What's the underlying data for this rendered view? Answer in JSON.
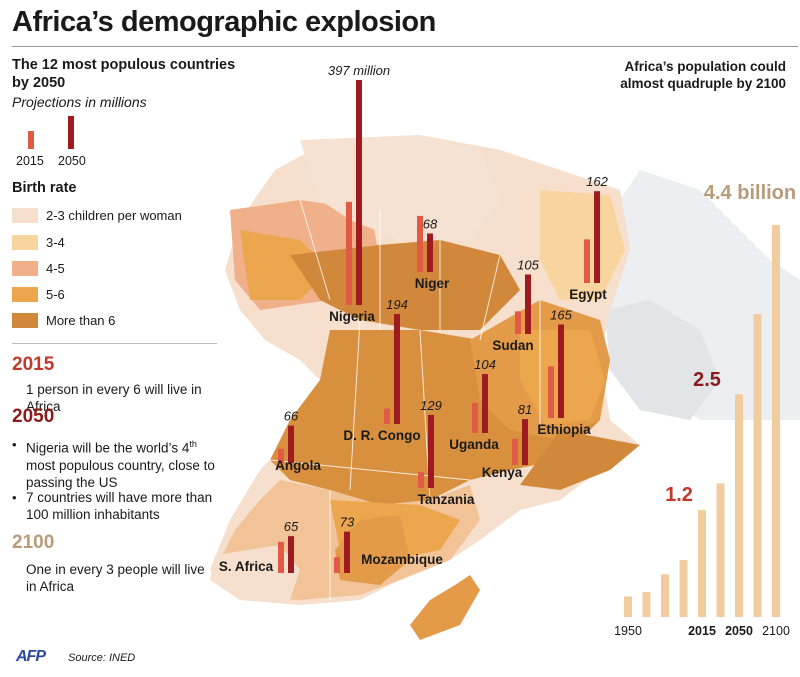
{
  "title": "Africa’s demographic explosion",
  "subtitle": "The 12 most populous countries by 2050",
  "subtitle2": "Projections in millions",
  "legend": {
    "y2015": "2015",
    "y2050": "2050",
    "color2015": "#e05a45",
    "color2050": "#9e1b22"
  },
  "birth_rate": {
    "title": "Birth rate",
    "items": [
      {
        "label": "2-3 children per woman",
        "color": "#f6dfcc"
      },
      {
        "label": "3-4",
        "color": "#f8d59f"
      },
      {
        "label": "4-5",
        "color": "#efb08a"
      },
      {
        "label": "5-6",
        "color": "#eca64d"
      },
      {
        "label": "More than 6",
        "color": "#d2883b"
      }
    ]
  },
  "notes": {
    "y2015": "2015",
    "t2015": "1 person in every 6 will live in Africa",
    "y2050": "2050",
    "b1": "Nigeria will be the world’s 4th most populous country, close to passing the US",
    "b2": "7 countries will have more than 100 million inhabitants",
    "y2100": "2100",
    "t2100": "One in every 3 people will live in Africa"
  },
  "right": {
    "headline": "Africa’s population could  almost quadruple by 2100",
    "big_label": "4.4 billion",
    "label_2015": "1.2",
    "label_2050": "2.5"
  },
  "footer": {
    "logo": "AFP",
    "source": "Source: INED"
  },
  "chart_data": [
    {
      "type": "bar",
      "title": "The 12 most populous countries by 2050",
      "subtitle": "Projections in millions",
      "series": [
        {
          "name": "2015",
          "values": [
            182,
            27,
            91,
            77,
            40,
            28,
            53,
            46,
            99,
            55,
            25,
            28
          ]
        },
        {
          "name": "2050",
          "values": [
            397,
            194,
            165,
            162,
            105,
            129,
            104,
            81,
            68,
            65,
            66,
            73
          ]
        }
      ],
      "categories": [
        "Nigeria",
        "D. R. Congo",
        "Ethiopia",
        "Egypt",
        "Sudan",
        "Tanzania",
        "Uganda",
        "Kenya",
        "Niger",
        "S. Africa",
        "Angola",
        "Mozambique"
      ],
      "labels_2050": [
        "397 million",
        "194",
        "165",
        "162",
        "105",
        "129",
        "104",
        "81",
        "68",
        "65",
        "66",
        "73"
      ]
    },
    {
      "type": "bar",
      "title": "Africa’s population could  almost quadruple by 2100",
      "categories": [
        "1950",
        "",
        "",
        "",
        "2015",
        "",
        "2050",
        "",
        "2100"
      ],
      "values": [
        0.23,
        0.28,
        0.48,
        0.64,
        1.2,
        1.5,
        2.5,
        3.4,
        4.4
      ],
      "unit": "billion",
      "value_labels": {
        "2015": "1.2",
        "2050": "2.5",
        "2100": "4.4 billion"
      }
    }
  ]
}
